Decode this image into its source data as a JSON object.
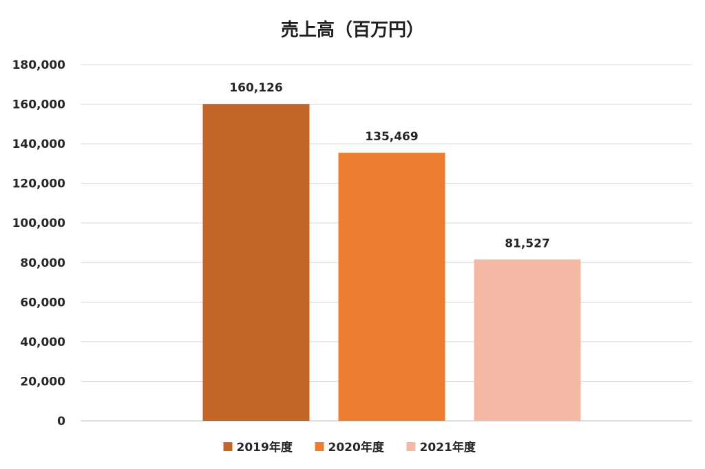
{
  "chart_data": {
    "type": "bar",
    "title": "売上高（百万円）",
    "xlabel": "",
    "ylabel": "",
    "ylim": [
      0,
      180000
    ],
    "y_ticks": [
      "0",
      "20,000",
      "40,000",
      "60,000",
      "80,000",
      "100,000",
      "120,000",
      "140,000",
      "160,000",
      "180,000"
    ],
    "grid": true,
    "legend_position": "bottom",
    "series": [
      {
        "name": "2019年度",
        "value": 160126,
        "label": "160,126",
        "color": "#C4662A"
      },
      {
        "name": "2020年度",
        "value": 135469,
        "label": "135,469",
        "color": "#ED7D31"
      },
      {
        "name": "2021年度",
        "value": 81527,
        "label": "81,527",
        "color": "#F4B9A5"
      }
    ]
  }
}
